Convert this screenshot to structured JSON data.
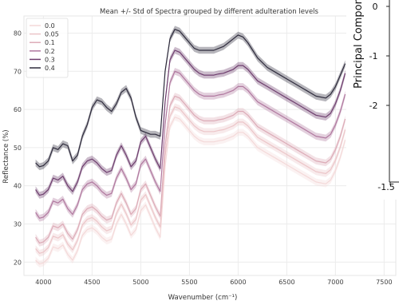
{
  "chart_data": {
    "type": "line",
    "title": "Mean +/- Std of Spectra grouped by different adulteration levels",
    "xlabel": "Wavenumber (cm⁻¹)",
    "ylabel": "Reflectance (%)",
    "xlim": [
      3800,
      7620
    ],
    "ylim": [
      16.5,
      84.5
    ],
    "x_ticks": [
      "4000",
      "4500",
      "5000",
      "5500",
      "6000",
      "6500",
      "7000",
      "7500"
    ],
    "y_ticks": [
      "20",
      "30",
      "40",
      "50",
      "60",
      "70",
      "80"
    ],
    "grid": true,
    "legend_position": "top-left",
    "std_band": 0.9,
    "x": [
      3920,
      3960,
      4000,
      4050,
      4100,
      4150,
      4200,
      4250,
      4300,
      4350,
      4400,
      4450,
      4500,
      4550,
      4600,
      4650,
      4700,
      4750,
      4800,
      4850,
      4900,
      4950,
      5000,
      5050,
      5100,
      5150,
      5200,
      5250,
      5300,
      5350,
      5400,
      5450,
      5500,
      5550,
      5600,
      5650,
      5700,
      5750,
      5800,
      5850,
      5900,
      5950,
      6000,
      6050,
      6100,
      6150,
      6200,
      6300,
      6400,
      6500,
      6600,
      6700,
      6800,
      6900,
      6950,
      7000,
      7050,
      7100
    ],
    "series": [
      {
        "name": "0.0",
        "color": "#f4d9d9",
        "values": [
          20.5,
          19.5,
          19.8,
          21.0,
          24.0,
          23.5,
          24.5,
          22.0,
          20.5,
          23.0,
          27.0,
          28.5,
          29.0,
          28.0,
          26.5,
          25.5,
          26.0,
          30.0,
          32.5,
          30.0,
          27.0,
          28.5,
          33.5,
          35.0,
          32.0,
          29.0,
          26.5,
          45.0,
          55.5,
          58.0,
          57.5,
          56.0,
          54.5,
          53.0,
          52.0,
          51.5,
          51.5,
          51.5,
          51.8,
          52.0,
          52.5,
          53.0,
          54.0,
          54.0,
          53.0,
          51.5,
          50.0,
          48.5,
          47.0,
          45.5,
          44.0,
          42.5,
          41.0,
          40.5,
          41.5,
          44.0,
          47.5,
          52.0
        ]
      },
      {
        "name": "0.05",
        "color": "#ecc6c9",
        "values": [
          23.5,
          22.3,
          22.6,
          23.8,
          26.8,
          26.3,
          27.2,
          24.7,
          23.2,
          25.7,
          29.7,
          31.2,
          31.7,
          30.7,
          29.2,
          28.2,
          28.7,
          32.7,
          35.2,
          32.7,
          29.7,
          31.2,
          36.2,
          37.7,
          34.7,
          31.7,
          29.2,
          47.7,
          58.2,
          60.7,
          60.2,
          58.7,
          57.2,
          55.7,
          54.7,
          54.2,
          54.2,
          54.2,
          54.5,
          54.7,
          55.2,
          55.7,
          56.7,
          56.7,
          55.7,
          54.2,
          52.7,
          51.2,
          49.7,
          48.2,
          46.7,
          45.2,
          43.7,
          43.2,
          44.2,
          46.7,
          50.2,
          54.7
        ]
      },
      {
        "name": "0.1",
        "color": "#dcabb7",
        "values": [
          26.5,
          25.0,
          25.3,
          26.5,
          29.5,
          29.0,
          30.0,
          27.5,
          26.0,
          28.5,
          32.5,
          34.0,
          34.5,
          33.5,
          32.0,
          31.0,
          31.5,
          35.5,
          38.0,
          35.5,
          32.5,
          34.0,
          39.0,
          40.5,
          37.5,
          34.5,
          32.0,
          50.5,
          61.0,
          63.5,
          63.0,
          61.5,
          60.0,
          58.5,
          57.5,
          57.0,
          57.0,
          57.0,
          57.3,
          57.5,
          58.0,
          58.5,
          59.5,
          59.5,
          58.5,
          57.0,
          55.5,
          54.0,
          52.5,
          51.0,
          49.5,
          48.0,
          46.5,
          46.0,
          47.0,
          49.5,
          53.0,
          57.5
        ]
      },
      {
        "name": "0.2",
        "color": "#b0789f",
        "values": [
          33.0,
          31.5,
          31.8,
          33.0,
          36.0,
          35.5,
          36.5,
          34.0,
          32.5,
          35.0,
          39.0,
          40.5,
          41.0,
          40.0,
          38.5,
          37.5,
          38.0,
          42.0,
          44.5,
          42.0,
          39.0,
          40.5,
          45.5,
          47.0,
          44.0,
          41.0,
          38.5,
          56.0,
          67.0,
          70.0,
          69.5,
          68.0,
          66.5,
          65.0,
          64.0,
          63.5,
          63.5,
          63.5,
          63.8,
          64.0,
          64.5,
          65.0,
          66.0,
          66.0,
          65.0,
          63.5,
          62.0,
          60.5,
          59.0,
          57.5,
          56.0,
          54.5,
          53.0,
          52.5,
          53.5,
          56.0,
          59.5,
          64.0
        ]
      },
      {
        "name": "0.3",
        "color": "#6e3e6e",
        "values": [
          39.0,
          37.5,
          37.8,
          39.0,
          42.0,
          41.5,
          42.5,
          40.0,
          38.5,
          41.0,
          45.0,
          46.5,
          47.0,
          46.0,
          44.5,
          43.5,
          44.0,
          48.0,
          50.5,
          48.0,
          45.0,
          46.5,
          51.5,
          53.0,
          50.0,
          47.0,
          44.5,
          62.0,
          73.0,
          75.5,
          75.0,
          73.5,
          72.0,
          70.5,
          69.5,
          69.0,
          69.0,
          69.0,
          69.3,
          69.5,
          70.0,
          70.5,
          71.5,
          71.5,
          70.5,
          69.0,
          67.5,
          66.0,
          64.5,
          63.0,
          61.5,
          60.0,
          58.5,
          58.0,
          59.0,
          61.5,
          65.0,
          69.5
        ]
      },
      {
        "name": "0.4",
        "color": "#2e2b3c",
        "values": [
          46.0,
          45.0,
          45.3,
          46.5,
          50.0,
          49.5,
          51.0,
          50.5,
          46.5,
          48.0,
          53.0,
          56.0,
          60.5,
          62.5,
          62.0,
          60.5,
          59.5,
          61.5,
          64.5,
          65.5,
          63.0,
          58.0,
          54.5,
          54.0,
          53.5,
          53.5,
          53.0,
          70.0,
          78.5,
          81.0,
          80.5,
          79.0,
          77.5,
          76.0,
          75.5,
          75.5,
          75.5,
          75.5,
          76.0,
          76.5,
          77.5,
          78.5,
          79.5,
          79.0,
          77.5,
          75.5,
          73.5,
          71.0,
          69.5,
          68.0,
          66.5,
          65.0,
          63.5,
          63.0,
          64.0,
          66.0,
          69.0,
          72.0
        ]
      }
    ]
  },
  "overlay_panel": {
    "ylabel": "Principal Compone",
    "y_ticks": [
      "0",
      "-1",
      "-2"
    ],
    "x_tick": "-1.5"
  }
}
